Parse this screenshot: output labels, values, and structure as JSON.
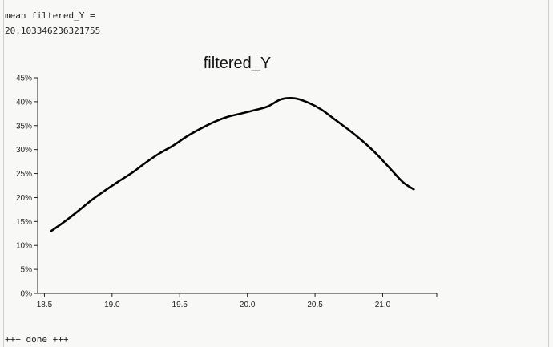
{
  "console": {
    "line1": "mean filtered_Y =",
    "line2": "20.103346236321755",
    "line3": "+++ done +++"
  },
  "chart_data": {
    "type": "line",
    "title": "filtered_Y",
    "xlabel": "",
    "ylabel": "",
    "xlim": [
      18.45,
      21.4
    ],
    "ylim": [
      0,
      0.45
    ],
    "x_ticks": [
      "18.5",
      "19.0",
      "19.5",
      "20.0",
      "20.5",
      "21.0"
    ],
    "y_ticks": [
      "0%",
      "5%",
      "10%",
      "15%",
      "20%",
      "25%",
      "30%",
      "35%",
      "40%",
      "45%"
    ],
    "grid": false,
    "series": [
      {
        "color": "#000000",
        "x": [
          18.55,
          18.65,
          18.75,
          18.85,
          18.95,
          19.05,
          19.15,
          19.25,
          19.35,
          19.45,
          19.55,
          19.65,
          19.75,
          19.85,
          19.95,
          20.05,
          20.15,
          20.25,
          20.35,
          20.45,
          20.55,
          20.65,
          20.75,
          20.85,
          20.95,
          21.05,
          21.15,
          21.23
        ],
        "y": [
          0.13,
          0.15,
          0.172,
          0.195,
          0.215,
          0.234,
          0.252,
          0.273,
          0.292,
          0.308,
          0.327,
          0.343,
          0.357,
          0.368,
          0.375,
          0.382,
          0.39,
          0.405,
          0.407,
          0.398,
          0.383,
          0.362,
          0.341,
          0.318,
          0.292,
          0.262,
          0.232,
          0.217
        ]
      }
    ]
  }
}
